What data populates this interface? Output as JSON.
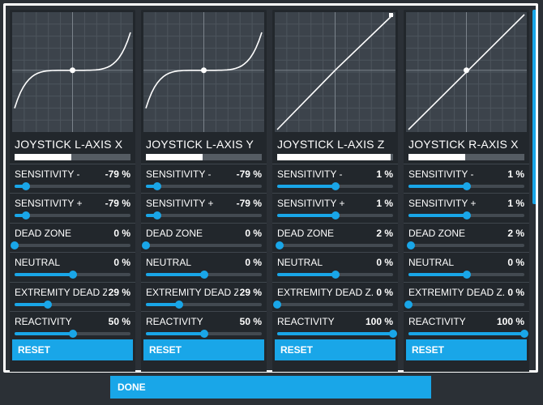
{
  "accent_color": "#19a6e8",
  "panels": [
    {
      "title": "JOYSTICK L-AXIS X",
      "title_bar_fraction": 0.49,
      "curve": "s-curve",
      "settings": [
        {
          "label": "SENSITIVITY -",
          "value": "-79 %",
          "fraction": 0.1
        },
        {
          "label": "SENSITIVITY +",
          "value": "-79 %",
          "fraction": 0.1
        },
        {
          "label": "DEAD ZONE",
          "value": "0 %",
          "fraction": 0.0
        },
        {
          "label": "NEUTRAL",
          "value": "0 %",
          "fraction": 0.5
        },
        {
          "label": "EXTREMITY DEAD Z...",
          "value": "29 %",
          "fraction": 0.29
        },
        {
          "label": "REACTIVITY",
          "value": "50 %",
          "fraction": 0.5
        }
      ],
      "reset_label": "RESET"
    },
    {
      "title": "JOYSTICK L-AXIS Y",
      "title_bar_fraction": 0.49,
      "curve": "s-curve",
      "settings": [
        {
          "label": "SENSITIVITY -",
          "value": "-79 %",
          "fraction": 0.1
        },
        {
          "label": "SENSITIVITY +",
          "value": "-79 %",
          "fraction": 0.1
        },
        {
          "label": "DEAD ZONE",
          "value": "0 %",
          "fraction": 0.0
        },
        {
          "label": "NEUTRAL",
          "value": "0 %",
          "fraction": 0.5
        },
        {
          "label": "EXTREMITY DEAD Z...",
          "value": "29 %",
          "fraction": 0.29
        },
        {
          "label": "REACTIVITY",
          "value": "50 %",
          "fraction": 0.5
        }
      ],
      "reset_label": "RESET"
    },
    {
      "title": "JOYSTICK L-AXIS Z",
      "title_bar_fraction": 0.98,
      "curve": "linear-step",
      "settings": [
        {
          "label": "SENSITIVITY -",
          "value": "1 %",
          "fraction": 0.5
        },
        {
          "label": "SENSITIVITY +",
          "value": "1 %",
          "fraction": 0.5
        },
        {
          "label": "DEAD ZONE",
          "value": "2 %",
          "fraction": 0.02
        },
        {
          "label": "NEUTRAL",
          "value": "0 %",
          "fraction": 0.5
        },
        {
          "label": "EXTREMITY DEAD Z...",
          "value": "0 %",
          "fraction": 0.0
        },
        {
          "label": "REACTIVITY",
          "value": "100 %",
          "fraction": 1.0
        }
      ],
      "reset_label": "RESET"
    },
    {
      "title": "JOYSTICK R-AXIS X",
      "title_bar_fraction": 0.49,
      "curve": "linear-center",
      "settings": [
        {
          "label": "SENSITIVITY -",
          "value": "1 %",
          "fraction": 0.5
        },
        {
          "label": "SENSITIVITY +",
          "value": "1 %",
          "fraction": 0.5
        },
        {
          "label": "DEAD ZONE",
          "value": "2 %",
          "fraction": 0.02
        },
        {
          "label": "NEUTRAL",
          "value": "0 %",
          "fraction": 0.5
        },
        {
          "label": "EXTREMITY DEAD Z...",
          "value": "0 %",
          "fraction": 0.0
        },
        {
          "label": "REACTIVITY",
          "value": "100 %",
          "fraction": 1.0
        }
      ],
      "reset_label": "RESET"
    }
  ],
  "done_label": "DONE"
}
